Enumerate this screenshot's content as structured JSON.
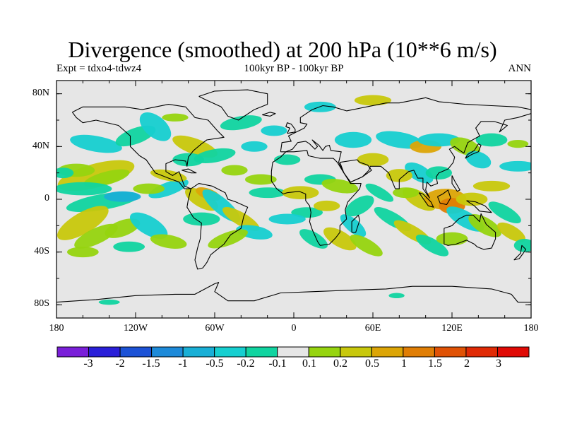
{
  "title": "Divergence (smoothed) at 200 hPa (10**6 m/s)",
  "subtitle_left": "Expt = tdxo4-tdwz4",
  "subtitle_center": "100kyr BP - 100kyr BP",
  "subtitle_right": "ANN",
  "map": {
    "projection": "cylindrical-equidistant",
    "lon_range": [
      -180,
      180
    ],
    "lat_range": [
      -90,
      90
    ],
    "background_color": "#e6e6e6",
    "lat_ticks": [
      {
        "lat": 80,
        "label": "80N"
      },
      {
        "lat": 40,
        "label": "40N"
      },
      {
        "lat": 0,
        "label": "0"
      },
      {
        "lat": -40,
        "label": "40S"
      },
      {
        "lat": -80,
        "label": "80S"
      }
    ],
    "lon_ticks": [
      {
        "lon": -180,
        "label": "180"
      },
      {
        "lon": -120,
        "label": "120W"
      },
      {
        "lon": -60,
        "label": "60W"
      },
      {
        "lon": 0,
        "label": "0"
      },
      {
        "lon": 60,
        "label": "60E"
      },
      {
        "lon": 120,
        "label": "120E"
      },
      {
        "lon": 180,
        "label": "180"
      }
    ],
    "coastlines": "continental outlines in black"
  },
  "colorbar": {
    "colors": [
      "#7a1fd9",
      "#2a1fd9",
      "#1c52d6",
      "#1d8ad9",
      "#19afd6",
      "#16cfd0",
      "#10d4a0",
      "#e6e6e6",
      "#96d40f",
      "#c8c80c",
      "#dca506",
      "#e07e05",
      "#e05205",
      "#e02a05",
      "#e00a05"
    ],
    "labels": [
      "-3",
      "-2",
      "-1.5",
      "-1",
      "-0.5",
      "-0.2",
      "-0.1",
      "0.1",
      "0.2",
      "0.5",
      "1",
      "1.5",
      "2",
      "3"
    ]
  }
}
